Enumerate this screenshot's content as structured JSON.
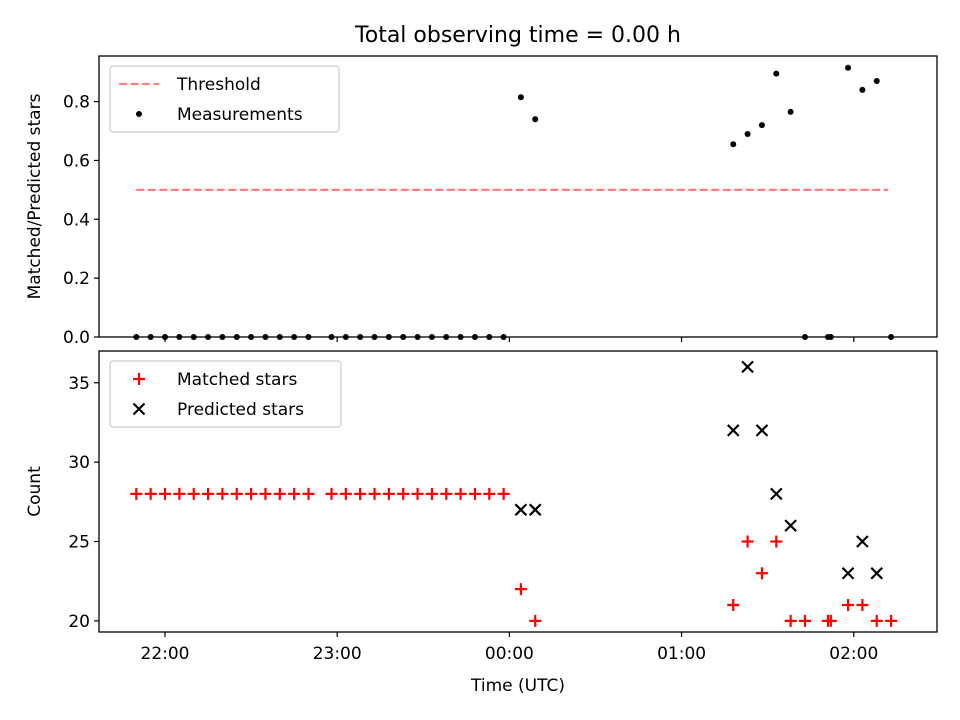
{
  "chart_data": [
    {
      "type": "scatter",
      "title": "Total observing time = 0.00 h",
      "xlabel": "",
      "ylabel": "Matched/Predicted stars",
      "ylim": [
        0,
        0.955
      ],
      "yticks": [
        0.0,
        0.2,
        0.4,
        0.6,
        0.8
      ],
      "ytick_labels": [
        "0.0",
        "0.2",
        "0.4",
        "0.6",
        "0.8"
      ],
      "xlim": [
        "21:37",
        "02:29"
      ],
      "xticks": [
        "22:00",
        "23:00",
        "00:00",
        "01:00",
        "02:00"
      ],
      "xtick_labels": [
        "",
        "",
        "",
        "",
        ""
      ],
      "grid": false,
      "legend": {
        "loc": "upper-left",
        "entries": [
          "Threshold",
          "Measurements"
        ]
      },
      "threshold": {
        "name": "Threshold",
        "y": 0.5,
        "x_range": [
          "21:50",
          "02:12"
        ],
        "color": "#ff7f7f",
        "style": "dashed"
      },
      "series": [
        {
          "name": "Measurements",
          "marker": "dot",
          "color": "#000000",
          "points": [
            [
              "21:50",
              0
            ],
            [
              "21:55",
              0
            ],
            [
              "22:00",
              0
            ],
            [
              "22:05",
              0
            ],
            [
              "22:10",
              0
            ],
            [
              "22:15",
              0
            ],
            [
              "22:20",
              0
            ],
            [
              "22:25",
              0
            ],
            [
              "22:30",
              0
            ],
            [
              "22:35",
              0
            ],
            [
              "22:40",
              0
            ],
            [
              "22:45",
              0
            ],
            [
              "22:50",
              0
            ],
            [
              "22:58",
              0
            ],
            [
              "23:03",
              0
            ],
            [
              "23:08",
              0
            ],
            [
              "23:13",
              0
            ],
            [
              "23:18",
              0
            ],
            [
              "23:23",
              0
            ],
            [
              "23:28",
              0
            ],
            [
              "23:33",
              0
            ],
            [
              "23:38",
              0
            ],
            [
              "23:43",
              0
            ],
            [
              "23:48",
              0
            ],
            [
              "23:53",
              0
            ],
            [
              "23:58",
              0
            ],
            [
              "00:04",
              0.815
            ],
            [
              "00:09",
              0.74
            ],
            [
              "01:18",
              0.655
            ],
            [
              "01:23",
              0.69
            ],
            [
              "01:28",
              0.72
            ],
            [
              "01:33",
              0.895
            ],
            [
              "01:38",
              0.765
            ],
            [
              "01:43",
              0
            ],
            [
              "01:51",
              0
            ],
            [
              "01:52",
              0
            ],
            [
              "01:58",
              0.915
            ],
            [
              "02:03",
              0.84
            ],
            [
              "02:08",
              0.87
            ],
            [
              "02:13",
              0
            ]
          ]
        }
      ]
    },
    {
      "type": "scatter",
      "title": "",
      "xlabel": "Time (UTC)",
      "ylabel": "Count",
      "ylim": [
        19.3,
        37
      ],
      "yticks": [
        20,
        25,
        30,
        35
      ],
      "ytick_labels": [
        "20",
        "25",
        "30",
        "35"
      ],
      "xlim": [
        "21:37",
        "02:29"
      ],
      "xticks": [
        "22:00",
        "23:00",
        "00:00",
        "01:00",
        "02:00"
      ],
      "xtick_labels": [
        "22:00",
        "23:00",
        "00:00",
        "01:00",
        "02:00"
      ],
      "grid": false,
      "legend": {
        "loc": "upper-left",
        "entries": [
          "Matched stars",
          "Predicted stars"
        ]
      },
      "series": [
        {
          "name": "Matched stars",
          "marker": "plus",
          "color": "#ff0000",
          "points": [
            [
              "21:50",
              28
            ],
            [
              "21:55",
              28
            ],
            [
              "22:00",
              28
            ],
            [
              "22:05",
              28
            ],
            [
              "22:10",
              28
            ],
            [
              "22:15",
              28
            ],
            [
              "22:20",
              28
            ],
            [
              "22:25",
              28
            ],
            [
              "22:30",
              28
            ],
            [
              "22:35",
              28
            ],
            [
              "22:40",
              28
            ],
            [
              "22:45",
              28
            ],
            [
              "22:50",
              28
            ],
            [
              "22:58",
              28
            ],
            [
              "23:03",
              28
            ],
            [
              "23:08",
              28
            ],
            [
              "23:13",
              28
            ],
            [
              "23:18",
              28
            ],
            [
              "23:23",
              28
            ],
            [
              "23:28",
              28
            ],
            [
              "23:33",
              28
            ],
            [
              "23:38",
              28
            ],
            [
              "23:43",
              28
            ],
            [
              "23:48",
              28
            ],
            [
              "23:53",
              28
            ],
            [
              "23:58",
              28
            ],
            [
              "00:04",
              22
            ],
            [
              "00:09",
              20
            ],
            [
              "01:18",
              21
            ],
            [
              "01:23",
              25
            ],
            [
              "01:28",
              23
            ],
            [
              "01:33",
              25
            ],
            [
              "01:38",
              20
            ],
            [
              "01:43",
              20
            ],
            [
              "01:51",
              20
            ],
            [
              "01:52",
              20
            ],
            [
              "01:58",
              21
            ],
            [
              "02:03",
              21
            ],
            [
              "02:08",
              20
            ],
            [
              "02:13",
              20
            ]
          ]
        },
        {
          "name": "Predicted stars",
          "marker": "x",
          "color": "#000000",
          "points": [
            [
              "00:04",
              27
            ],
            [
              "00:09",
              27
            ],
            [
              "01:18",
              32
            ],
            [
              "01:23",
              36
            ],
            [
              "01:28",
              32
            ],
            [
              "01:33",
              28
            ],
            [
              "01:38",
              26
            ],
            [
              "01:58",
              23
            ],
            [
              "02:03",
              25
            ],
            [
              "02:08",
              23
            ]
          ]
        }
      ]
    }
  ]
}
